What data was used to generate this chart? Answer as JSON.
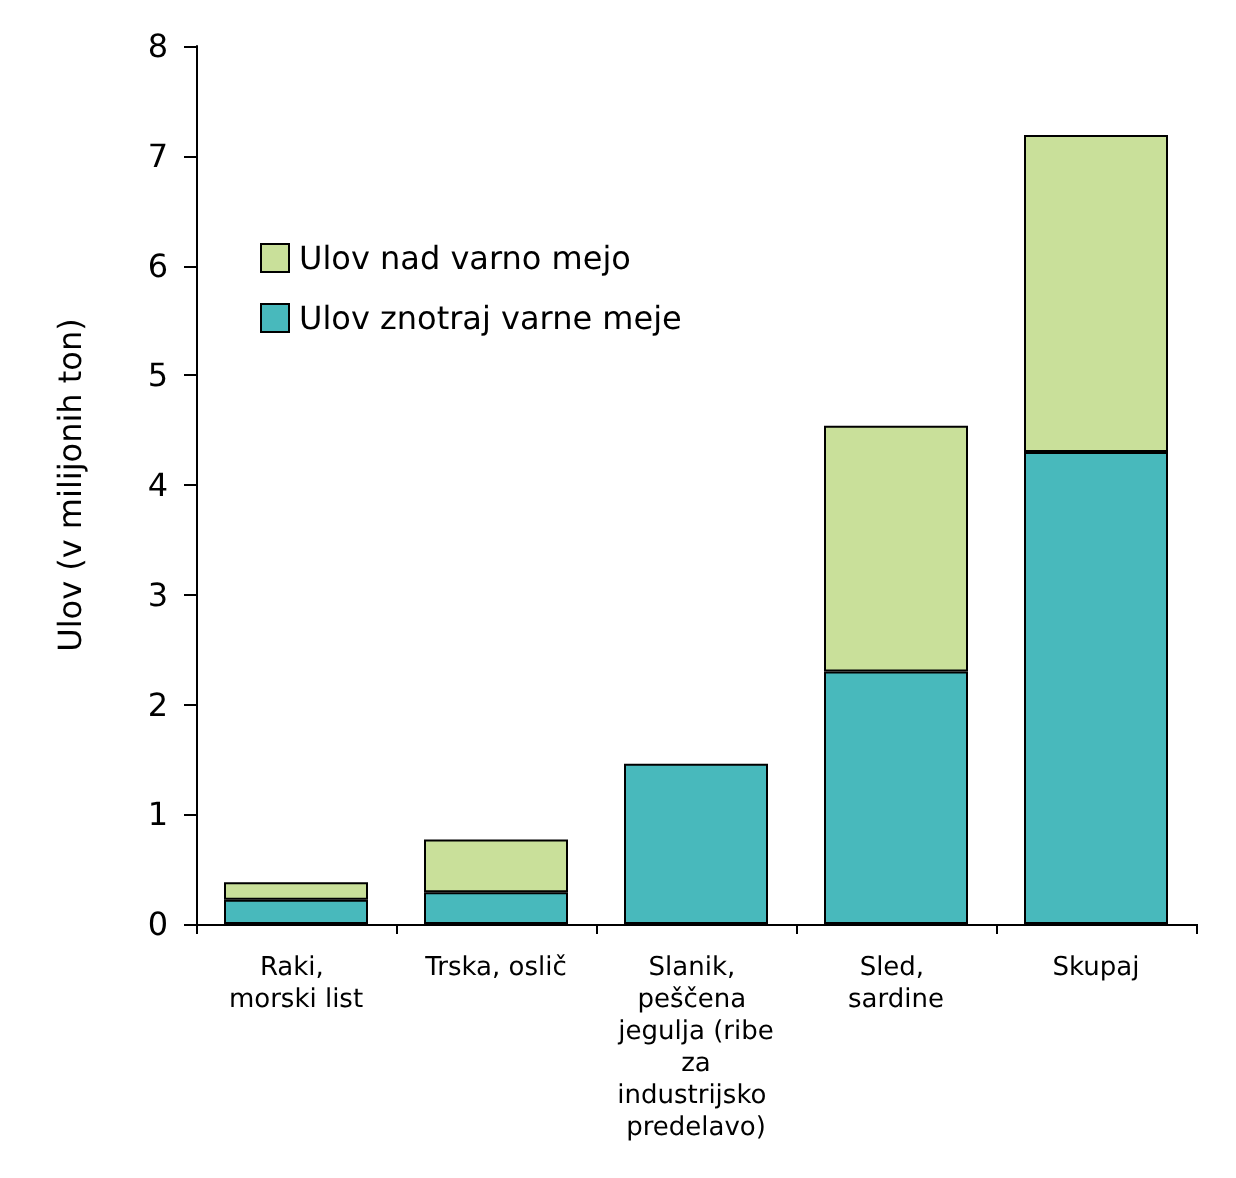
{
  "chart_data": {
    "type": "bar",
    "stacked": true,
    "ylabel": "Ulov (v milijonih ton)",
    "categories": [
      "Raki, morski list",
      "Trska, oslič",
      "Slanik, peščena jegulja (ribe za industrijsko predelavo)",
      "Sled, sardine",
      "Skupaj"
    ],
    "series": [
      {
        "name": "Ulov znotraj varne meje",
        "color": "#48b9bc",
        "values": [
          0.22,
          0.29,
          1.46,
          2.3,
          4.3
        ]
      },
      {
        "name": "Ulov nad varno mejo",
        "color": "#c9e09a",
        "values": [
          0.16,
          0.48,
          null,
          2.24,
          2.89
        ]
      }
    ],
    "ylim": [
      0,
      8
    ],
    "yticks": [
      0,
      1,
      2,
      3,
      4,
      5,
      6,
      7,
      8
    ],
    "grid": false,
    "legend": "top left"
  }
}
